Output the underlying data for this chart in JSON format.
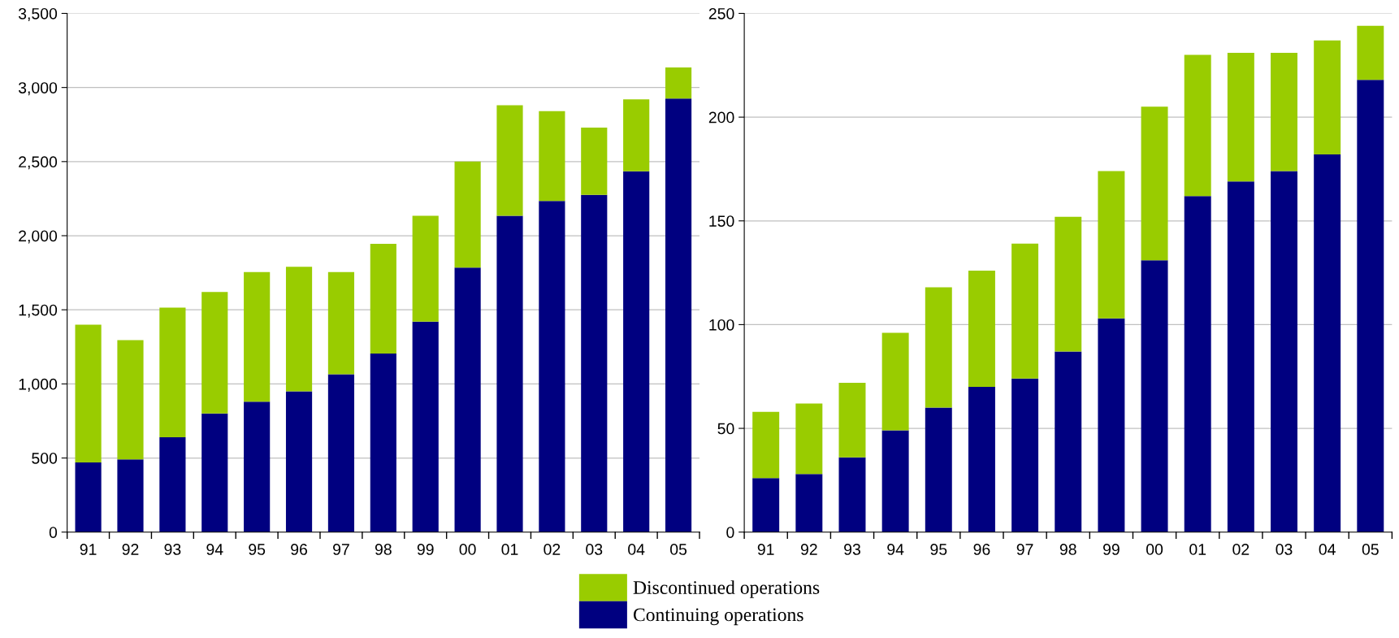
{
  "chart_data": [
    {
      "type": "bar",
      "stacked": true,
      "categories": [
        "91",
        "92",
        "93",
        "94",
        "95",
        "96",
        "97",
        "98",
        "99",
        "00",
        "01",
        "02",
        "03",
        "04",
        "05"
      ],
      "series": [
        {
          "name": "Continuing operations",
          "color": "#000080",
          "values": [
            470,
            490,
            640,
            800,
            880,
            950,
            1065,
            1205,
            1420,
            1785,
            2135,
            2235,
            2275,
            2435,
            2925
          ]
        },
        {
          "name": "Discontinued operations",
          "color": "#99cc00",
          "values": [
            930,
            805,
            875,
            820,
            875,
            840,
            690,
            740,
            715,
            715,
            745,
            605,
            455,
            485,
            210
          ]
        }
      ],
      "ylim": [
        0,
        3500
      ],
      "yticks": [
        {
          "value": 0,
          "label": "0"
        },
        {
          "value": 500,
          "label": "500"
        },
        {
          "value": 1000,
          "label": "1,000"
        },
        {
          "value": 1500,
          "label": "1,500"
        },
        {
          "value": 2000,
          "label": "2,000"
        },
        {
          "value": 2500,
          "label": "2,500"
        },
        {
          "value": 3000,
          "label": "3,000"
        },
        {
          "value": 3500,
          "label": "3,500"
        }
      ],
      "grid": "y",
      "legend": "bottom"
    },
    {
      "type": "bar",
      "stacked": true,
      "categories": [
        "91",
        "92",
        "93",
        "94",
        "95",
        "96",
        "97",
        "98",
        "99",
        "00",
        "01",
        "02",
        "03",
        "04",
        "05"
      ],
      "series": [
        {
          "color": "#000080",
          "values": [
            26,
            28,
            36,
            49,
            60,
            70,
            74,
            87,
            103,
            131,
            162,
            169,
            174,
            182,
            218
          ]
        },
        {
          "color": "#99cc00",
          "values": [
            32,
            34,
            36,
            47,
            58,
            56,
            65,
            65,
            71,
            74,
            68,
            62,
            57,
            55,
            26
          ]
        }
      ],
      "ylim": [
        0,
        250
      ],
      "yticks": [
        0,
        50,
        100,
        150,
        200,
        250
      ],
      "grid": "y"
    }
  ]
}
